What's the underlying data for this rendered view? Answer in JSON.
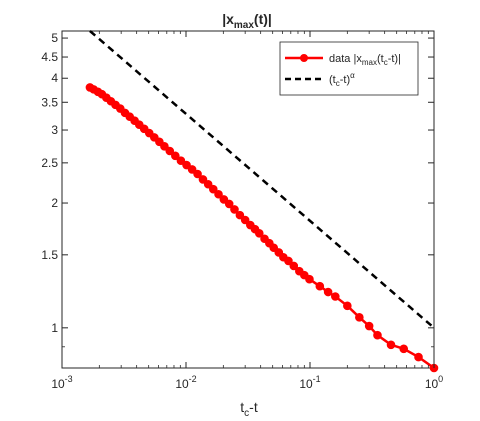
{
  "chart_data": {
    "type": "line",
    "title": "|x",
    "title_sub": "max",
    "title_tail": "(t)|",
    "xlabel": "t",
    "xlabel_sub": "c",
    "xlabel_tail": "-t",
    "ylabel": "",
    "xscale": "log",
    "yscale": "log",
    "xlim": [
      0.001,
      1
    ],
    "ylim": [
      0.8,
      5.2
    ],
    "grid": false,
    "legend_placement": "top-right",
    "x_ticks": [
      {
        "value": 0.001,
        "base": "10",
        "exp": "-3"
      },
      {
        "value": 0.01,
        "base": "10",
        "exp": "-2"
      },
      {
        "value": 0.1,
        "base": "10",
        "exp": "-1"
      },
      {
        "value": 1,
        "base": "10",
        "exp": "0"
      }
    ],
    "y_ticks": [
      {
        "value": 1,
        "label": "1"
      },
      {
        "value": 1.5,
        "label": "1.5"
      },
      {
        "value": 2,
        "label": "2"
      },
      {
        "value": 2.5,
        "label": "2.5"
      },
      {
        "value": 3,
        "label": "3"
      },
      {
        "value": 3.5,
        "label": "3.5"
      },
      {
        "value": 4,
        "label": "4"
      },
      {
        "value": 4.5,
        "label": "4.5"
      },
      {
        "value": 5,
        "label": "5"
      }
    ],
    "series": [
      {
        "name": "data  |x",
        "name_sub": "max",
        "name_tail": "(t",
        "name_sub2": "c",
        "name_tail2": "-t)|",
        "color": "#ff0000",
        "style": "solid-with-markers",
        "x": [
          0.00168,
          0.0018,
          0.00195,
          0.0021,
          0.00228,
          0.00248,
          0.0027,
          0.00295,
          0.00322,
          0.00352,
          0.00385,
          0.0042,
          0.0046,
          0.00505,
          0.00555,
          0.0061,
          0.0067,
          0.0074,
          0.0082,
          0.0091,
          0.0101,
          0.0112,
          0.0124,
          0.0137,
          0.0151,
          0.0166,
          0.0183,
          0.0202,
          0.0223,
          0.0246,
          0.0272,
          0.03,
          0.033,
          0.036,
          0.039,
          0.043,
          0.047,
          0.051,
          0.056,
          0.061,
          0.067,
          0.074,
          0.082,
          0.09,
          0.099,
          0.12,
          0.14,
          0.16,
          0.2,
          0.25,
          0.3,
          0.35,
          0.45,
          0.57,
          0.75,
          1.0
        ],
        "y": [
          3.8,
          3.76,
          3.71,
          3.66,
          3.59,
          3.52,
          3.45,
          3.38,
          3.3,
          3.23,
          3.16,
          3.09,
          3.02,
          2.95,
          2.88,
          2.81,
          2.74,
          2.67,
          2.6,
          2.53,
          2.47,
          2.41,
          2.35,
          2.28,
          2.22,
          2.16,
          2.1,
          2.04,
          1.99,
          1.93,
          1.87,
          1.82,
          1.77,
          1.73,
          1.69,
          1.64,
          1.6,
          1.56,
          1.52,
          1.48,
          1.45,
          1.41,
          1.37,
          1.34,
          1.31,
          1.26,
          1.22,
          1.19,
          1.13,
          1.06,
          1.01,
          0.96,
          0.91,
          0.89,
          0.85,
          0.8
        ]
      },
      {
        "name": "(t",
        "name_sub": "c",
        "name_tail": "-t)",
        "name_sup": "α",
        "color": "#000000",
        "style": "dashed",
        "x": [
          0.00168,
          1.0
        ],
        "y": [
          5.2,
          1.0
        ]
      }
    ]
  }
}
